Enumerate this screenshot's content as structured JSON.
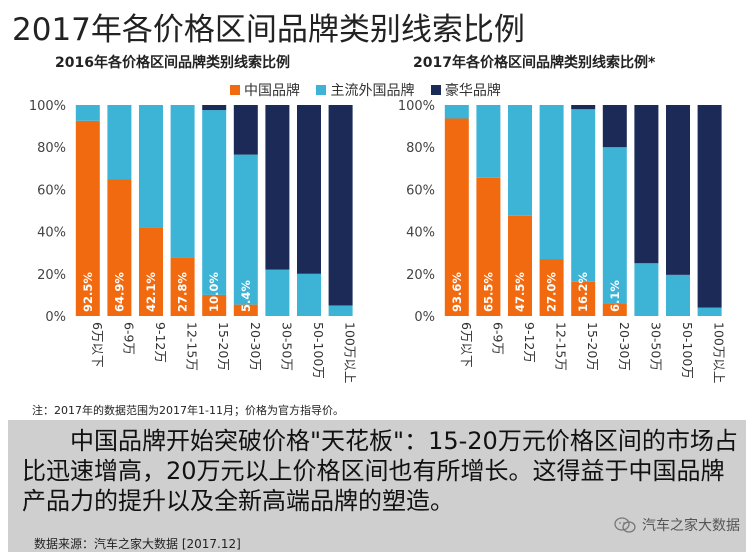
{
  "page_title": "2017年各价格区间品牌类别线索比例",
  "colors": {
    "china": "#f26a10",
    "foreign": "#3db4d5",
    "luxury": "#1c2a57"
  },
  "chart_data": [
    {
      "type": "bar",
      "stacked": true,
      "title": "2016年各价格区间品牌类别线索比例",
      "categories": [
        "6万以下",
        "6-9万",
        "9-12万",
        "12-15万",
        "15-20万",
        "20-30万",
        "30-50万",
        "50-100万",
        "100万以上"
      ],
      "series": [
        {
          "name": "中国品牌",
          "values": [
            92.5,
            64.9,
            42.1,
            27.8,
            10.0,
            5.4,
            0,
            0,
            0
          ],
          "labels": [
            "92.5%",
            "64.9%",
            "42.1%",
            "27.8%",
            "10.0%",
            "5.4%",
            "",
            "",
            ""
          ]
        },
        {
          "name": "主流外国品牌",
          "values": [
            7.5,
            35.1,
            57.9,
            72.2,
            87.6,
            71.1,
            22.0,
            20.0,
            5.0
          ]
        },
        {
          "name": "豪华品牌",
          "values": [
            0,
            0,
            0,
            0,
            2.4,
            23.5,
            78.0,
            80.0,
            95.0
          ]
        }
      ],
      "yticks": [
        "0%",
        "20%",
        "40%",
        "60%",
        "80%",
        "100%"
      ],
      "ylim": [
        0,
        100
      ],
      "legend": "top"
    },
    {
      "type": "bar",
      "stacked": true,
      "title": "2017年各价格区间品牌类别线索比例*",
      "categories": [
        "6万以下",
        "6-9万",
        "9-12万",
        "12-15万",
        "15-20万",
        "20-30万",
        "30-50万",
        "50-100万",
        "100万以上"
      ],
      "series": [
        {
          "name": "中国品牌",
          "values": [
            93.6,
            65.5,
            47.5,
            27.0,
            16.2,
            6.1,
            0,
            0,
            0
          ],
          "labels": [
            "93.6%",
            "65.5%",
            "47.5%",
            "27.0%",
            "16.2%",
            "6.1%",
            "",
            "",
            ""
          ]
        },
        {
          "name": "主流外国品牌",
          "values": [
            6.4,
            34.5,
            52.5,
            73.0,
            81.8,
            73.9,
            25.0,
            19.5,
            4.0
          ]
        },
        {
          "name": "豪华品牌",
          "values": [
            0,
            0,
            0,
            0,
            2.0,
            20.0,
            75.0,
            80.5,
            96.0
          ]
        }
      ],
      "yticks": [
        "0%",
        "20%",
        "40%",
        "60%",
        "80%",
        "100%"
      ],
      "ylim": [
        0,
        100
      ],
      "legend": "top"
    }
  ],
  "note": "注：2017年的数据范围为2017年1-11月；价格为官方指导价。",
  "summary": "中国品牌开始突破价格\"天花板\"：15-20万元价格区间的市场占比迅速增高，20万元以上价格区间也有所增长。这得益于中国品牌产品力的提升以及全新高端品牌的塑造。",
  "source": "数据来源：汽车之家大数据 [2017.12]",
  "watermark": "汽车之家大数据",
  "wechat_icon": "wechat-icon"
}
